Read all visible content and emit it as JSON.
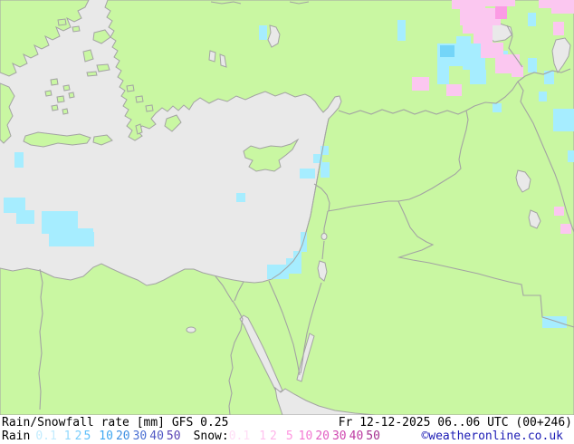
{
  "header": {
    "product_title": "Rain/Snowfall rate [mm] GFS 0.25",
    "valid_time": "Fr 12-12-2025 06..06 UTC (00+246)"
  },
  "legend": {
    "rain_label": "Rain",
    "snow_label": "Snow:",
    "rain_scale": [
      {
        "value": "0.1",
        "color": "#c2ecfe"
      },
      {
        "value": "1",
        "color": "#93d9fd"
      },
      {
        "value": "2",
        "color": "#79cdfc"
      },
      {
        "value": "5",
        "color": "#60c0fa"
      },
      {
        "value": "10",
        "color": "#41a9f2"
      },
      {
        "value": "20",
        "color": "#3e8fe2"
      },
      {
        "value": "30",
        "color": "#4a6fd2"
      },
      {
        "value": "40",
        "color": "#5058c4"
      },
      {
        "value": "50",
        "color": "#5a43b4"
      }
    ],
    "snow_scale": [
      {
        "value": "0.1",
        "color": "#ffdef6"
      },
      {
        "value": "1",
        "color": "#ffc2ef"
      },
      {
        "value": "2",
        "color": "#ffb4ea"
      },
      {
        "value": "5",
        "color": "#ff97e0"
      },
      {
        "value": "10",
        "color": "#f379d3"
      },
      {
        "value": "20",
        "color": "#e260c3"
      },
      {
        "value": "30",
        "color": "#d048b0"
      },
      {
        "value": "40",
        "color": "#bd3ba2"
      },
      {
        "value": "50",
        "color": "#a53190"
      }
    ]
  },
  "branding": {
    "copyright": "©weatheronline.co.uk",
    "color": "#1a1ab4"
  },
  "map": {
    "colors": {
      "land": "#c9f7a2",
      "sea": "#e9e9e9",
      "coast": "#a3a3a3",
      "rain_light": "#a6edff",
      "rain_medium": "#74d5f8",
      "snow_light": "#fbc7f0",
      "snow_medium": "#fb9be4"
    }
  }
}
